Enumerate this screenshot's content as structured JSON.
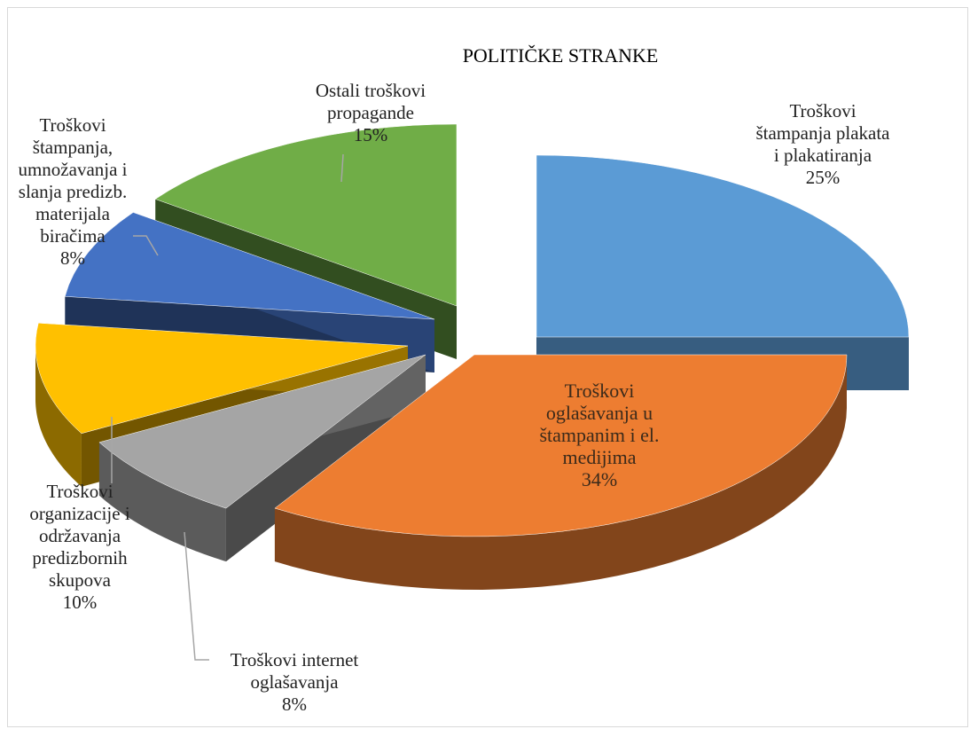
{
  "chart_data": {
    "type": "pie",
    "title": "POLITIČKE STRANKE",
    "variant": "3d-exploded",
    "slices": [
      {
        "name": "Troškovi štampanja plakata i plakatiranja",
        "label_lines": [
          "Troškovi",
          "štampanja plakata",
          "i plakatiranja"
        ],
        "value": 25,
        "percent_label": "25%",
        "color": "#5B9BD5"
      },
      {
        "name": "Troškovi oglašavanja u štampanim i el. medijima",
        "label_lines": [
          "Troškovi",
          "oglašavanja u",
          "štampanim i el.",
          "medijima"
        ],
        "value": 34,
        "percent_label": "34%",
        "color": "#ED7D31"
      },
      {
        "name": "Troškovi internet oglašavanja",
        "label_lines": [
          "Troškovi internet",
          "oglašavanja"
        ],
        "value": 8,
        "percent_label": "8%",
        "color": "#A5A5A5"
      },
      {
        "name": "Troškovi organizacije i održavanja predizbornih skupova",
        "label_lines": [
          "Troškovi",
          "organizacije i",
          "održavanja",
          "predizbornih",
          "skupova"
        ],
        "value": 10,
        "percent_label": "10%",
        "color": "#FFC000"
      },
      {
        "name": "Troškovi štampanja, umnožavanja i slanja predizb. materijala biračima",
        "label_lines": [
          "Troškovi",
          "štampanja,",
          "umnožavanja i",
          "slanja predizb.",
          "materijala",
          "biračima"
        ],
        "value": 8,
        "percent_label": "8%",
        "color": "#4472C4"
      },
      {
        "name": "Ostali troškovi propagande",
        "label_lines": [
          "Ostali troškovi",
          "propagande"
        ],
        "value": 15,
        "percent_label": "15%",
        "color": "#70AD47"
      }
    ]
  }
}
